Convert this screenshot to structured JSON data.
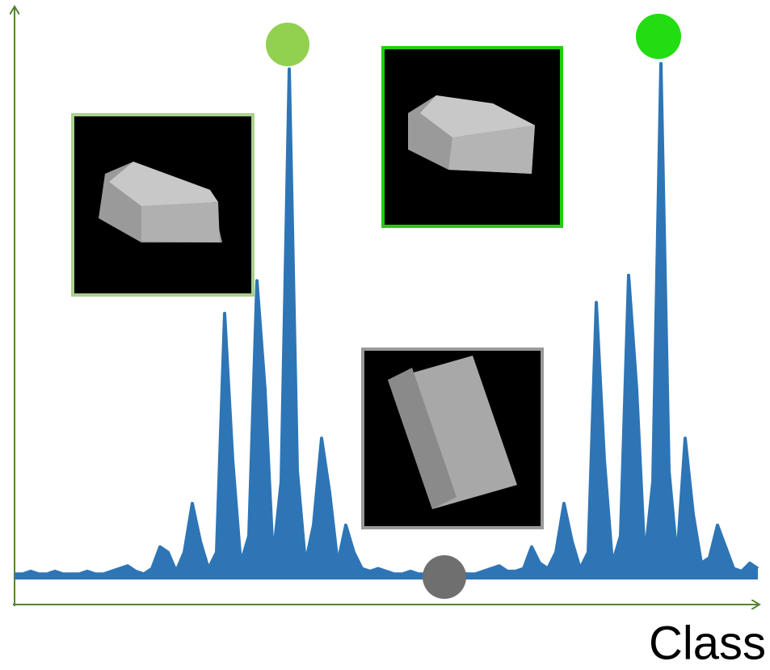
{
  "chart_data": {
    "type": "line",
    "x_label": "Class",
    "color": "#2e75b6",
    "axis_color": "#548235",
    "ylim": [
      0,
      100
    ],
    "values": [
      1,
      1,
      1.5,
      1,
      1,
      1.5,
      1,
      1,
      1,
      1.5,
      1,
      1,
      1.5,
      2,
      2.5,
      1.5,
      1,
      2,
      6,
      5,
      1.5,
      5,
      14,
      7,
      2,
      5,
      49,
      22,
      3,
      8,
      55,
      35,
      4,
      18,
      94,
      20,
      3,
      10,
      26,
      16,
      3,
      10,
      5,
      2,
      1.5,
      2,
      1.5,
      1,
      1,
      1.5,
      1,
      1,
      1,
      1,
      1,
      1.5,
      1,
      1,
      1.5,
      2,
      2.5,
      1.5,
      1.5,
      2,
      6,
      3,
      2,
      5,
      14,
      7,
      2,
      5,
      51,
      22,
      3,
      8,
      56,
      35,
      4,
      18,
      95,
      20,
      4,
      26,
      12,
      3,
      4,
      10,
      6,
      2,
      1.5,
      3,
      2
    ]
  }
}
